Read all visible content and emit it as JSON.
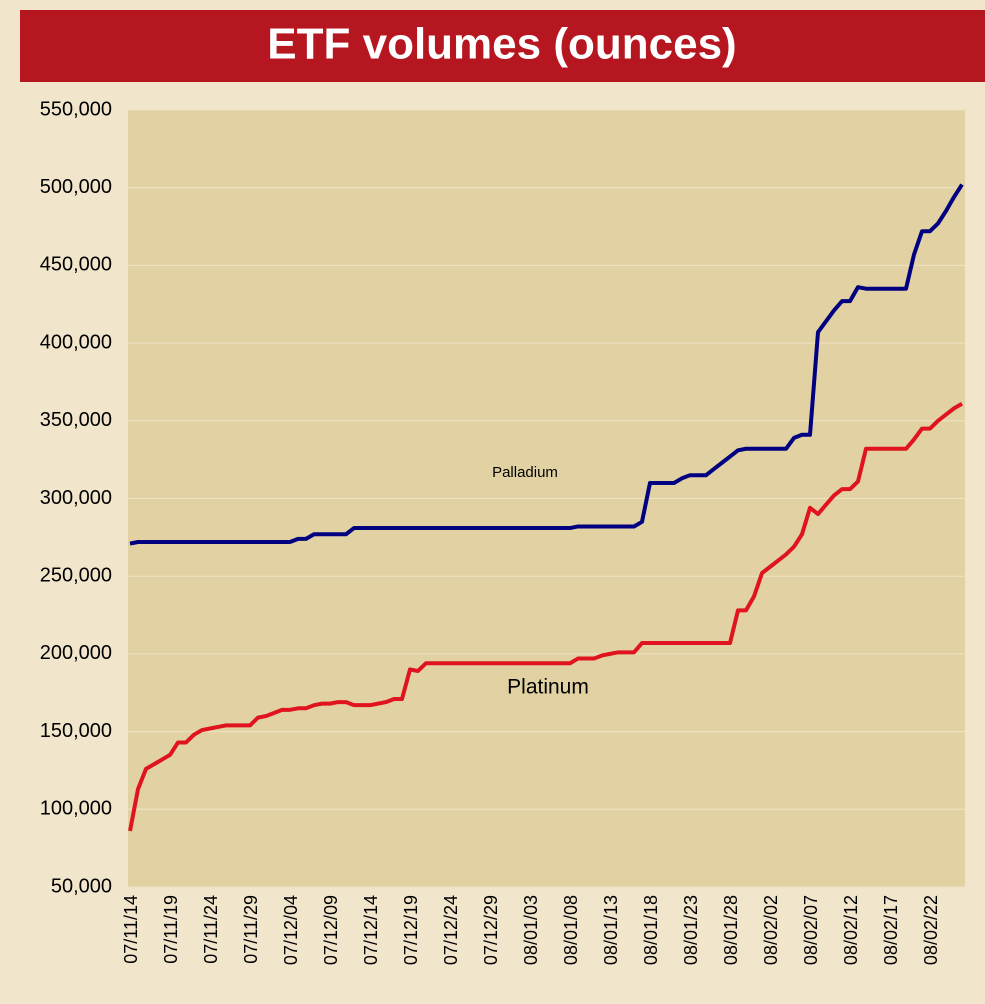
{
  "chart_data": {
    "type": "line",
    "title": "ETF volumes (ounces)",
    "categories": [
      "07/11/14",
      null,
      null,
      null,
      null,
      "07/11/19",
      null,
      null,
      null,
      null,
      "07/11/24",
      null,
      null,
      null,
      null,
      "07/11/29",
      null,
      null,
      null,
      null,
      "07/12/04",
      null,
      null,
      null,
      null,
      "07/12/09",
      null,
      null,
      null,
      null,
      "07/12/14",
      null,
      null,
      null,
      null,
      "07/12/19",
      null,
      null,
      null,
      null,
      "07/12/24",
      null,
      null,
      null,
      null,
      "07/12/29",
      null,
      null,
      null,
      null,
      "08/01/03",
      null,
      null,
      null,
      null,
      "08/01/08",
      null,
      null,
      null,
      null,
      "08/01/13",
      null,
      null,
      null,
      null,
      "08/01/18",
      null,
      null,
      null,
      null,
      "08/01/23",
      null,
      null,
      null,
      null,
      "08/01/28",
      null,
      null,
      null,
      null,
      "08/02/02",
      null,
      null,
      null,
      null,
      "08/02/07",
      null,
      null,
      null,
      null,
      "08/02/12",
      null,
      null,
      null,
      null,
      "08/02/17",
      null,
      null,
      null,
      null,
      "08/02/22",
      null,
      null,
      null,
      null
    ],
    "series": [
      {
        "name": "Palladium",
        "color": "#000080",
        "values": [
          271000,
          272000,
          272000,
          272000,
          272000,
          272000,
          272000,
          272000,
          272000,
          272000,
          272000,
          272000,
          272000,
          272000,
          272000,
          272000,
          272000,
          272000,
          272000,
          272000,
          272000,
          274000,
          274000,
          277000,
          277000,
          277000,
          277000,
          277000,
          281000,
          281000,
          281000,
          281000,
          281000,
          281000,
          281000,
          281000,
          281000,
          281000,
          281000,
          281000,
          281000,
          281000,
          281000,
          281000,
          281000,
          281000,
          281000,
          281000,
          281000,
          281000,
          281000,
          281000,
          281000,
          281000,
          281000,
          281000,
          282000,
          282000,
          282000,
          282000,
          282000,
          282000,
          282000,
          282000,
          285000,
          310000,
          310000,
          310000,
          310000,
          313000,
          315000,
          315000,
          315000,
          319000,
          323000,
          327000,
          331000,
          332000,
          332000,
          332000,
          332000,
          332000,
          332000,
          339000,
          341000,
          341000,
          407000,
          414000,
          421000,
          427000,
          427000,
          436000,
          435000,
          435000,
          435000,
          435000,
          435000,
          435000,
          457000,
          472000,
          472000,
          477000,
          485000,
          494000,
          502000
        ]
      },
      {
        "name": "Platinum",
        "color": "#e0141e",
        "values": [
          86000,
          113000,
          126000,
          129000,
          132000,
          135000,
          143000,
          143000,
          148000,
          151000,
          152000,
          153000,
          154000,
          154000,
          154000,
          154000,
          159000,
          160000,
          162000,
          164000,
          164000,
          165000,
          165000,
          167000,
          168000,
          168000,
          169000,
          169000,
          167000,
          167000,
          167000,
          168000,
          169000,
          171000,
          171000,
          190000,
          189000,
          194000,
          194000,
          194000,
          194000,
          194000,
          194000,
          194000,
          194000,
          194000,
          194000,
          194000,
          194000,
          194000,
          194000,
          194000,
          194000,
          194000,
          194000,
          194000,
          197000,
          197000,
          197000,
          199000,
          200000,
          201000,
          201000,
          201000,
          207000,
          207000,
          207000,
          207000,
          207000,
          207000,
          207000,
          207000,
          207000,
          207000,
          207000,
          207000,
          228000,
          228000,
          237000,
          252000,
          256000,
          260000,
          264000,
          269000,
          277000,
          294000,
          290000,
          296000,
          302000,
          306000,
          306000,
          311000,
          332000,
          332000,
          332000,
          332000,
          332000,
          332000,
          338000,
          345000,
          345000,
          350000,
          354000,
          358000,
          361000
        ]
      }
    ],
    "ylim": [
      50000,
      550000
    ],
    "yticks": [
      {
        "value": 50000,
        "label": "50,000"
      },
      {
        "value": 100000,
        "label": "100,000"
      },
      {
        "value": 150000,
        "label": "150,000"
      },
      {
        "value": 200000,
        "label": "200,000"
      },
      {
        "value": 250000,
        "label": "250,000"
      },
      {
        "value": 300000,
        "label": "300,000"
      },
      {
        "value": 350000,
        "label": "350,000"
      },
      {
        "value": 400000,
        "label": "400,000"
      },
      {
        "value": 450000,
        "label": "450,000"
      },
      {
        "value": 500000,
        "label": "500,000"
      },
      {
        "value": 550000,
        "label": "550,000"
      }
    ],
    "grid": true
  }
}
